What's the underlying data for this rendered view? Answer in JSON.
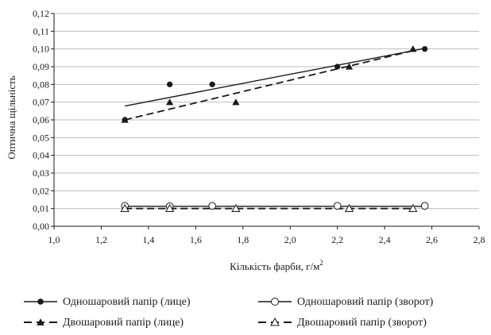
{
  "chart_data": {
    "type": "scatter",
    "title": "",
    "xlabel": "Кількість фарби, г/м",
    "xlabel_superscript": "2",
    "ylabel": "Оптична щільність",
    "xlim": [
      1.0,
      2.8
    ],
    "ylim": [
      0.0,
      0.12
    ],
    "x_ticks": [
      "1,0",
      "1,2",
      "1,4",
      "1,6",
      "1,8",
      "2,0",
      "2,2",
      "2,4",
      "2,6",
      "2,8"
    ],
    "y_ticks": [
      "0,00",
      "0,01",
      "0,02",
      "0,03",
      "0,04",
      "0,05",
      "0,06",
      "0,07",
      "0,08",
      "0,09",
      "0,10",
      "0,11",
      "0,12"
    ],
    "grid": "horizontal",
    "legend_position": "bottom",
    "series": [
      {
        "name": "Одношаровий папір (лице)",
        "marker": "filled-circle",
        "line": "solid",
        "x": [
          1.3,
          1.49,
          1.67,
          2.2,
          2.57
        ],
        "y": [
          0.06,
          0.08,
          0.08,
          0.09,
          0.1
        ],
        "trend": [
          [
            1.3,
            0.0678
          ],
          [
            2.57,
            0.1003
          ]
        ]
      },
      {
        "name": "Двошаровий папір (лице)",
        "marker": "filled-triangle",
        "line": "dashed",
        "x": [
          1.3,
          1.49,
          1.77,
          2.25,
          2.52
        ],
        "y": [
          0.06,
          0.07,
          0.07,
          0.09,
          0.1
        ],
        "trend": [
          [
            1.3,
            0.06
          ],
          [
            2.52,
            0.099
          ]
        ]
      },
      {
        "name": "Одношаровий папір (зворот)",
        "marker": "open-circle",
        "line": "solid",
        "x": [
          1.3,
          1.49,
          1.67,
          2.2,
          2.57
        ],
        "y": [
          0.0115,
          0.0113,
          0.0115,
          0.0115,
          0.0115
        ],
        "trend": [
          [
            1.3,
            0.0112
          ],
          [
            2.57,
            0.0112
          ]
        ]
      },
      {
        "name": "Двошаровий папір (зворот)",
        "marker": "open-triangle",
        "line": "dashed",
        "x": [
          1.3,
          1.49,
          1.77,
          2.25,
          2.52
        ],
        "y": [
          0.01,
          0.01,
          0.01,
          0.01,
          0.01
        ],
        "trend": [
          [
            1.3,
            0.01
          ],
          [
            2.52,
            0.01
          ]
        ]
      }
    ]
  }
}
